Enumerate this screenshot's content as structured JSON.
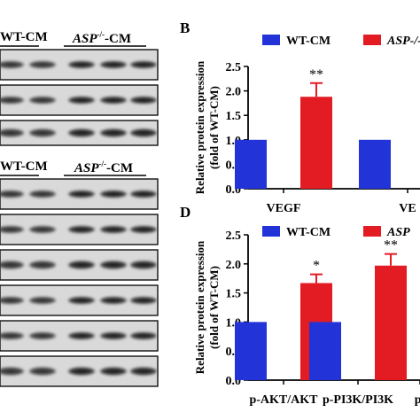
{
  "blots": {
    "top_group_label_wt": "WT-CM",
    "top_group_label_asp": "ASP",
    "top_group_label_asp_sup": "-/-",
    "top_group_label_asp_suffix": "-CM",
    "bottom_group_label_wt": "WT-CM",
    "bottom_group_label_asp": "ASP",
    "bottom_group_label_asp_sup": "-/-",
    "bottom_group_label_asp_suffix": "-CM"
  },
  "panels": {
    "b_letter": "B",
    "d_letter": "D"
  },
  "colors": {
    "wt": "#2233d8",
    "asp": "#e31c24",
    "axis": "#000000"
  },
  "chart_data": [
    {
      "panel": "B",
      "type": "bar",
      "ylabel": "Relative protein expression (fold of WT-CM)",
      "ylabel_line1": "Relative protein expression",
      "ylabel_line2": "(fold of WT-CM)",
      "ylim": [
        0,
        2.5
      ],
      "yticks": [
        "0.0",
        "0.5",
        "1.0",
        "1.5",
        "2.0",
        "2.5"
      ],
      "categories": [
        "VEGF",
        "VE"
      ],
      "legend": [
        {
          "name": "WT-CM",
          "color": "#2233d8"
        },
        {
          "name": "ASP-/--",
          "color": "#e31c24"
        }
      ],
      "series": [
        {
          "name": "WT-CM",
          "values": [
            1.0,
            1.0
          ],
          "errors": [
            0,
            0
          ]
        },
        {
          "name": "ASP-/--",
          "values": [
            1.88,
            null
          ],
          "errors": [
            0.28,
            null
          ]
        }
      ],
      "annotations": [
        "**"
      ]
    },
    {
      "panel": "D",
      "type": "bar",
      "ylabel": "Relative protein expression (fold of WT-CM)",
      "ylabel_line1": "Relative protein expression",
      "ylabel_line2": "(fold of WT-CM)",
      "ylim": [
        0,
        2.5
      ],
      "yticks": [
        "0.0",
        "0.5",
        "1.0",
        "1.5",
        "2.0",
        "2.5"
      ],
      "categories": [
        "p-AKT/AKT",
        "p-PI3K/PI3K",
        "p-"
      ],
      "legend": [
        {
          "name": "WT-CM",
          "color": "#2233d8"
        },
        {
          "name": "ASP",
          "color": "#e31c24"
        }
      ],
      "series": [
        {
          "name": "WT-CM",
          "values": [
            1.0,
            1.0,
            null
          ],
          "errors": [
            0,
            0,
            null
          ]
        },
        {
          "name": "ASP",
          "values": [
            1.67,
            1.97,
            null
          ],
          "errors": [
            0.15,
            0.2,
            null
          ]
        }
      ],
      "annotations": [
        "*",
        "**"
      ]
    }
  ]
}
